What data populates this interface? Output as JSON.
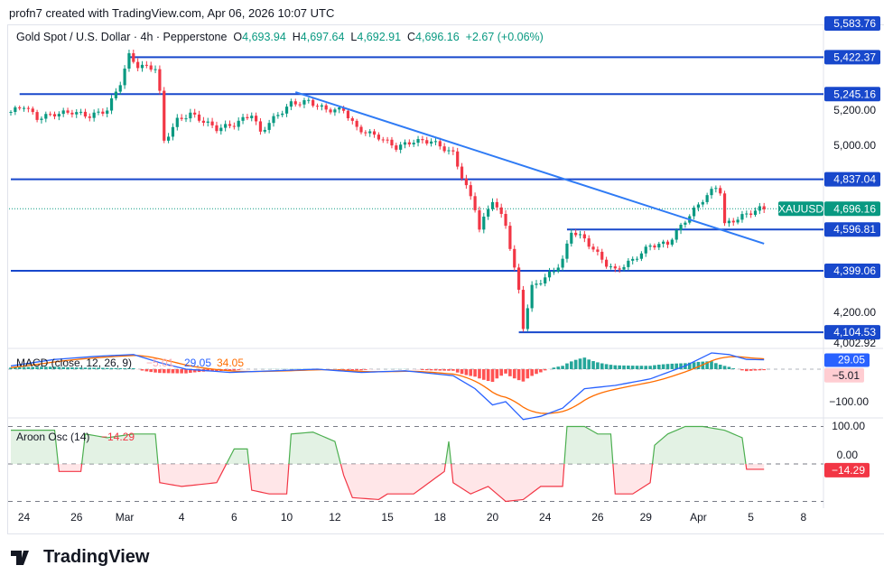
{
  "credit": "profn7 created with TradingView.com, Apr 06, 2026 10:07 UTC",
  "header": {
    "symbol": "Gold Spot / U.S. Dollar · 4h · Pepperstone",
    "o_label": "O",
    "o": "4,693.94",
    "h_label": "H",
    "h": "4,697.64",
    "l_label": "L",
    "l": "4,692.91",
    "c_label": "C",
    "c": "4,696.16",
    "change": "+2.67 (+0.06%)"
  },
  "colors": {
    "up": "#089981",
    "down": "#f23645",
    "level": "#1848cc",
    "trend": "#2f7bf5",
    "macd": "#2962ff",
    "signal": "#ff6d00",
    "aroon": "#f23645",
    "aroon_up": "#4caf50"
  },
  "price_axis": {
    "ticks": [
      "5,200.00",
      "5,000.00",
      "4,200.00"
    ],
    "tick_values": [
      5200,
      5000,
      4200
    ],
    "last_hidden": "4,002.92"
  },
  "levels": [
    {
      "value": 5583.76,
      "label": "5,583.76",
      "start_bar": null
    },
    {
      "value": 5422.37,
      "label": "5,422.37",
      "start_bar": 27
    },
    {
      "value": 5245.16,
      "label": "5,245.16",
      "start_bar": 2
    },
    {
      "value": 4837.04,
      "label": "4,837.04",
      "start_bar": 0
    },
    {
      "value": 4596.81,
      "label": "4,596.81",
      "start_bar": 127
    },
    {
      "value": 4399.06,
      "label": "4,399.06",
      "start_bar": 0
    },
    {
      "value": 4104.53,
      "label": "4,104.53",
      "start_bar": 116
    }
  ],
  "trendline": {
    "from": [
      65,
      5255
    ],
    "to": [
      172,
      4529
    ]
  },
  "last_price": {
    "symbol": "XAUUSD",
    "value": "4,696.16",
    "price": 4696.16
  },
  "price_path": [
    [
      0,
      5160
    ],
    [
      3,
      5190
    ],
    [
      6,
      5130
    ],
    [
      10,
      5150
    ],
    [
      14,
      5160
    ],
    [
      18,
      5140
    ],
    [
      22,
      5170
    ],
    [
      25,
      5300
    ],
    [
      27,
      5430
    ],
    [
      29,
      5380
    ],
    [
      33,
      5370
    ],
    [
      34,
      5250
    ],
    [
      35,
      5020
    ],
    [
      38,
      5120
    ],
    [
      41,
      5150
    ],
    [
      47,
      5080
    ],
    [
      51,
      5100
    ],
    [
      55,
      5150
    ],
    [
      57,
      5060
    ],
    [
      59,
      5110
    ],
    [
      64,
      5200
    ],
    [
      68,
      5210
    ],
    [
      72,
      5170
    ],
    [
      76,
      5170
    ],
    [
      79,
      5080
    ],
    [
      84,
      5040
    ],
    [
      88,
      4990
    ],
    [
      92,
      5020
    ],
    [
      96,
      5020
    ],
    [
      101,
      4960
    ],
    [
      103,
      4850
    ],
    [
      106,
      4700
    ],
    [
      107,
      4600
    ],
    [
      110,
      4740
    ],
    [
      113,
      4620
    ],
    [
      116,
      4300
    ],
    [
      117,
      4130
    ],
    [
      119,
      4320
    ],
    [
      121,
      4350
    ],
    [
      124,
      4400
    ],
    [
      126,
      4450
    ],
    [
      128,
      4590
    ],
    [
      131,
      4550
    ],
    [
      136,
      4430
    ],
    [
      138,
      4400
    ],
    [
      142,
      4450
    ],
    [
      146,
      4520
    ],
    [
      150,
      4530
    ],
    [
      154,
      4640
    ],
    [
      158,
      4740
    ],
    [
      161,
      4800
    ],
    [
      162,
      4780
    ],
    [
      163,
      4620
    ],
    [
      165,
      4640
    ],
    [
      168,
      4670
    ],
    [
      171,
      4696.16
    ]
  ],
  "macd": {
    "title": "MACD (close, 12, 26, 9)",
    "hist": "−5.01",
    "macd": "29.05",
    "signal": "34.05",
    "axis_tick": "−100.00",
    "path": [
      [
        0,
        10
      ],
      [
        10,
        30
      ],
      [
        20,
        40
      ],
      [
        28,
        45
      ],
      [
        34,
        20
      ],
      [
        40,
        0
      ],
      [
        50,
        -10
      ],
      [
        60,
        -5
      ],
      [
        70,
        0
      ],
      [
        80,
        -10
      ],
      [
        90,
        -5
      ],
      [
        101,
        -20
      ],
      [
        106,
        -60
      ],
      [
        110,
        -110
      ],
      [
        113,
        -100
      ],
      [
        117,
        -155
      ],
      [
        121,
        -145
      ],
      [
        126,
        -120
      ],
      [
        131,
        -60
      ],
      [
        138,
        -50
      ],
      [
        146,
        -30
      ],
      [
        154,
        10
      ],
      [
        160,
        50
      ],
      [
        164,
        45
      ],
      [
        168,
        30
      ],
      [
        172,
        29
      ]
    ]
  },
  "aroon": {
    "title": "Aroon Osc (14)",
    "value": "−14.29",
    "axis_top": "100.00",
    "axis_mid": "0.00",
    "path": [
      [
        0,
        90
      ],
      [
        10,
        90
      ],
      [
        11,
        -20
      ],
      [
        16,
        -20
      ],
      [
        17,
        80
      ],
      [
        22,
        70
      ],
      [
        28,
        80
      ],
      [
        33,
        80
      ],
      [
        34,
        -50
      ],
      [
        39,
        -60
      ],
      [
        47,
        -50
      ],
      [
        51,
        40
      ],
      [
        54,
        40
      ],
      [
        55,
        -70
      ],
      [
        59,
        -80
      ],
      [
        63,
        -80
      ],
      [
        64,
        80
      ],
      [
        69,
        85
      ],
      [
        74,
        60
      ],
      [
        76,
        -30
      ],
      [
        78,
        -90
      ],
      [
        84,
        -95
      ],
      [
        86,
        -80
      ],
      [
        92,
        -80
      ],
      [
        99,
        -20
      ],
      [
        100,
        60
      ],
      [
        101,
        -50
      ],
      [
        105,
        -80
      ],
      [
        109,
        -60
      ],
      [
        113,
        -100
      ],
      [
        117,
        -95
      ],
      [
        121,
        -60
      ],
      [
        126,
        -60
      ],
      [
        127,
        100
      ],
      [
        131,
        100
      ],
      [
        134,
        80
      ],
      [
        137,
        80
      ],
      [
        138,
        -80
      ],
      [
        142,
        -80
      ],
      [
        146,
        -50
      ],
      [
        147,
        50
      ],
      [
        150,
        80
      ],
      [
        154,
        100
      ],
      [
        158,
        100
      ],
      [
        163,
        90
      ],
      [
        167,
        70
      ],
      [
        168,
        -14.29
      ],
      [
        172,
        -14.29
      ]
    ]
  },
  "time_axis": [
    {
      "t": "24",
      "bar": 3
    },
    {
      "t": "26",
      "bar": 15
    },
    {
      "t": "Mar",
      "bar": 26
    },
    {
      "t": "4",
      "bar": 39
    },
    {
      "t": "6",
      "bar": 51
    },
    {
      "t": "10",
      "bar": 63
    },
    {
      "t": "12",
      "bar": 74
    },
    {
      "t": "15",
      "bar": 86
    },
    {
      "t": "18",
      "bar": 98
    },
    {
      "t": "20",
      "bar": 110
    },
    {
      "t": "24",
      "bar": 122
    },
    {
      "t": "26",
      "bar": 134
    },
    {
      "t": "29",
      "bar": 145
    },
    {
      "t": "Apr",
      "bar": 157
    },
    {
      "t": "5",
      "bar": 169
    },
    {
      "t": "8",
      "bar": 181
    }
  ],
  "logo": "TradingView"
}
